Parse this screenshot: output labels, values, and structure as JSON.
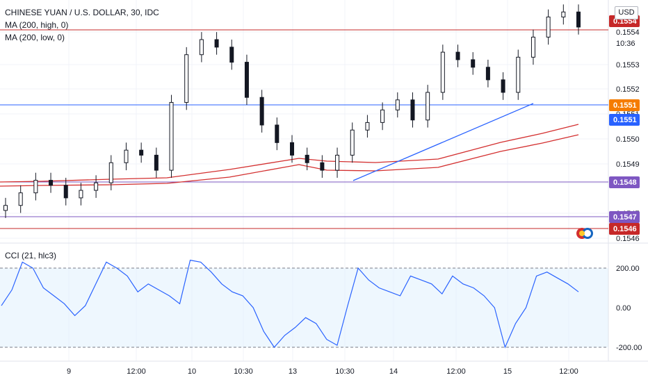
{
  "header": {
    "title": "CHINESE YUAN / U.S. DOLLAR, 30, IDC",
    "ma_high_label": "MA (200, high, 0)",
    "ma_low_label": "MA (200, low, 0)",
    "currency_button": "USD"
  },
  "cci_label": "CCI (21, hlc3)",
  "price_axis": {
    "ticks": [
      "0.1546",
      "0.1547",
      "0.1548",
      "0.1549",
      "0.1550",
      "0.1551",
      "0.1552",
      "0.1553",
      "0.1554"
    ],
    "current_price_badge": "0.1554",
    "countdown": "10:36",
    "tags": [
      {
        "label": "0.1554",
        "color": "#c62828"
      },
      {
        "label": "0.1551",
        "color": "#f57c00"
      },
      {
        "label": "0.1551",
        "color": "#2962ff"
      },
      {
        "label": "0.1548",
        "color": "#7e57c2"
      },
      {
        "label": "0.1547",
        "color": "#7e57c2"
      },
      {
        "label": "0.1546",
        "color": "#c62828"
      }
    ]
  },
  "time_axis": {
    "labels": [
      "9",
      "12:00",
      "10",
      "10:30",
      "13",
      "10:30",
      "14",
      "12:00",
      "15",
      "12:00"
    ]
  },
  "cci_axis": {
    "labels": [
      "200.00",
      "0.00",
      "-200.00"
    ]
  },
  "chart_data": [
    {
      "type": "candlestick",
      "title": "CHINESE YUAN / U.S. DOLLAR, 30, IDC",
      "ylim": [
        0.15455,
        0.15549
      ],
      "horizontal_lines": [
        0.15541,
        0.1551,
        0.1548,
        0.1547,
        0.1546
      ],
      "series": [
        {
          "name": "MA (200, high, 0)",
          "color": "#d32f2f",
          "values": [
            0.15481,
            0.15481,
            0.15482,
            0.15485,
            0.15491,
            0.15494,
            0.15493,
            0.15491,
            0.15492,
            0.15498,
            0.15506,
            0.15514
          ]
        },
        {
          "name": "MA (200, low, 0)",
          "color": "#d32f2f",
          "values": [
            0.15477,
            0.15477,
            0.15478,
            0.15481,
            0.15486,
            0.15489,
            0.15488,
            0.15486,
            0.15487,
            0.15493,
            0.155,
            0.15509
          ]
        }
      ],
      "trendlines": [
        {
          "from": [
            0.15482
          ],
          "to": [
            0.15511
          ],
          "color": "#2962ff"
        }
      ],
      "close": [
        0.1547,
        0.15475,
        0.1548,
        0.15478,
        0.15473,
        0.15476,
        0.15479,
        0.15487,
        0.15492,
        0.1549,
        0.15484,
        0.15511,
        0.1553,
        0.15536,
        0.15533,
        0.15527,
        0.15513,
        0.15502,
        0.15495,
        0.1549,
        0.15487,
        0.15484,
        0.1549,
        0.155,
        0.15503,
        0.15508,
        0.15512,
        0.15504,
        0.15515,
        0.15531,
        0.15528,
        0.15525,
        0.1552,
        0.15515,
        0.15529,
        0.15537,
        0.15545,
        0.15547,
        0.15541
      ]
    },
    {
      "type": "line",
      "title": "CCI (21, hlc3)",
      "ylim": [
        -260,
        260
      ],
      "reference_lines": [
        200,
        -200
      ],
      "series": [
        {
          "name": "CCI (21, hlc3)",
          "color": "#2962ff",
          "values": [
            10,
            90,
            230,
            200,
            100,
            60,
            20,
            -40,
            10,
            120,
            230,
            200,
            160,
            80,
            120,
            90,
            60,
            20,
            240,
            230,
            180,
            120,
            80,
            60,
            0,
            -120,
            -200,
            -140,
            -100,
            -50,
            -80,
            -160,
            -190,
            10,
            200,
            140,
            100,
            80,
            60,
            160,
            140,
            120,
            70,
            160,
            120,
            100,
            60,
            0,
            -200,
            -80,
            0,
            160,
            180,
            150,
            120,
            80
          ]
        }
      ]
    }
  ]
}
